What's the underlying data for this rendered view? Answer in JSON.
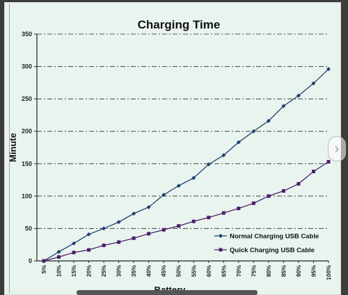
{
  "chart_data": {
    "type": "line",
    "title": "Charging Time",
    "xlabel": "Battery",
    "ylabel": "Minute",
    "categories": [
      "5%",
      "10%",
      "15%",
      "20%",
      "25%",
      "30%",
      "35%",
      "40%",
      "45%",
      "50%",
      "55%",
      "60%",
      "65%",
      "70%",
      "75%",
      "80%",
      "85%",
      "90%",
      "95%",
      "100%"
    ],
    "ylim": [
      0,
      350
    ],
    "yticks": [
      "0",
      "50",
      "100",
      "150",
      "200",
      "250",
      "300",
      "350"
    ],
    "grid": "horizontal dash-dot",
    "legend_position": "bottom-right",
    "series": [
      {
        "name": "Normal Charging USB Cable",
        "color": "#1f3f6e",
        "marker": "diamond",
        "values": [
          0,
          14,
          27,
          41,
          50,
          60,
          73,
          83,
          102,
          116,
          128,
          149,
          163,
          183,
          200,
          216,
          239,
          255,
          274,
          296
        ]
      },
      {
        "name": "Quick Charging USB Cable",
        "color": "#4a1f6e",
        "marker": "square",
        "values": [
          0,
          6,
          13,
          17,
          24,
          29,
          35,
          42,
          48,
          54,
          61,
          67,
          74,
          81,
          89,
          100,
          108,
          119,
          138,
          153
        ]
      }
    ]
  },
  "ui": {
    "next_icon": "chevron-right-icon"
  }
}
